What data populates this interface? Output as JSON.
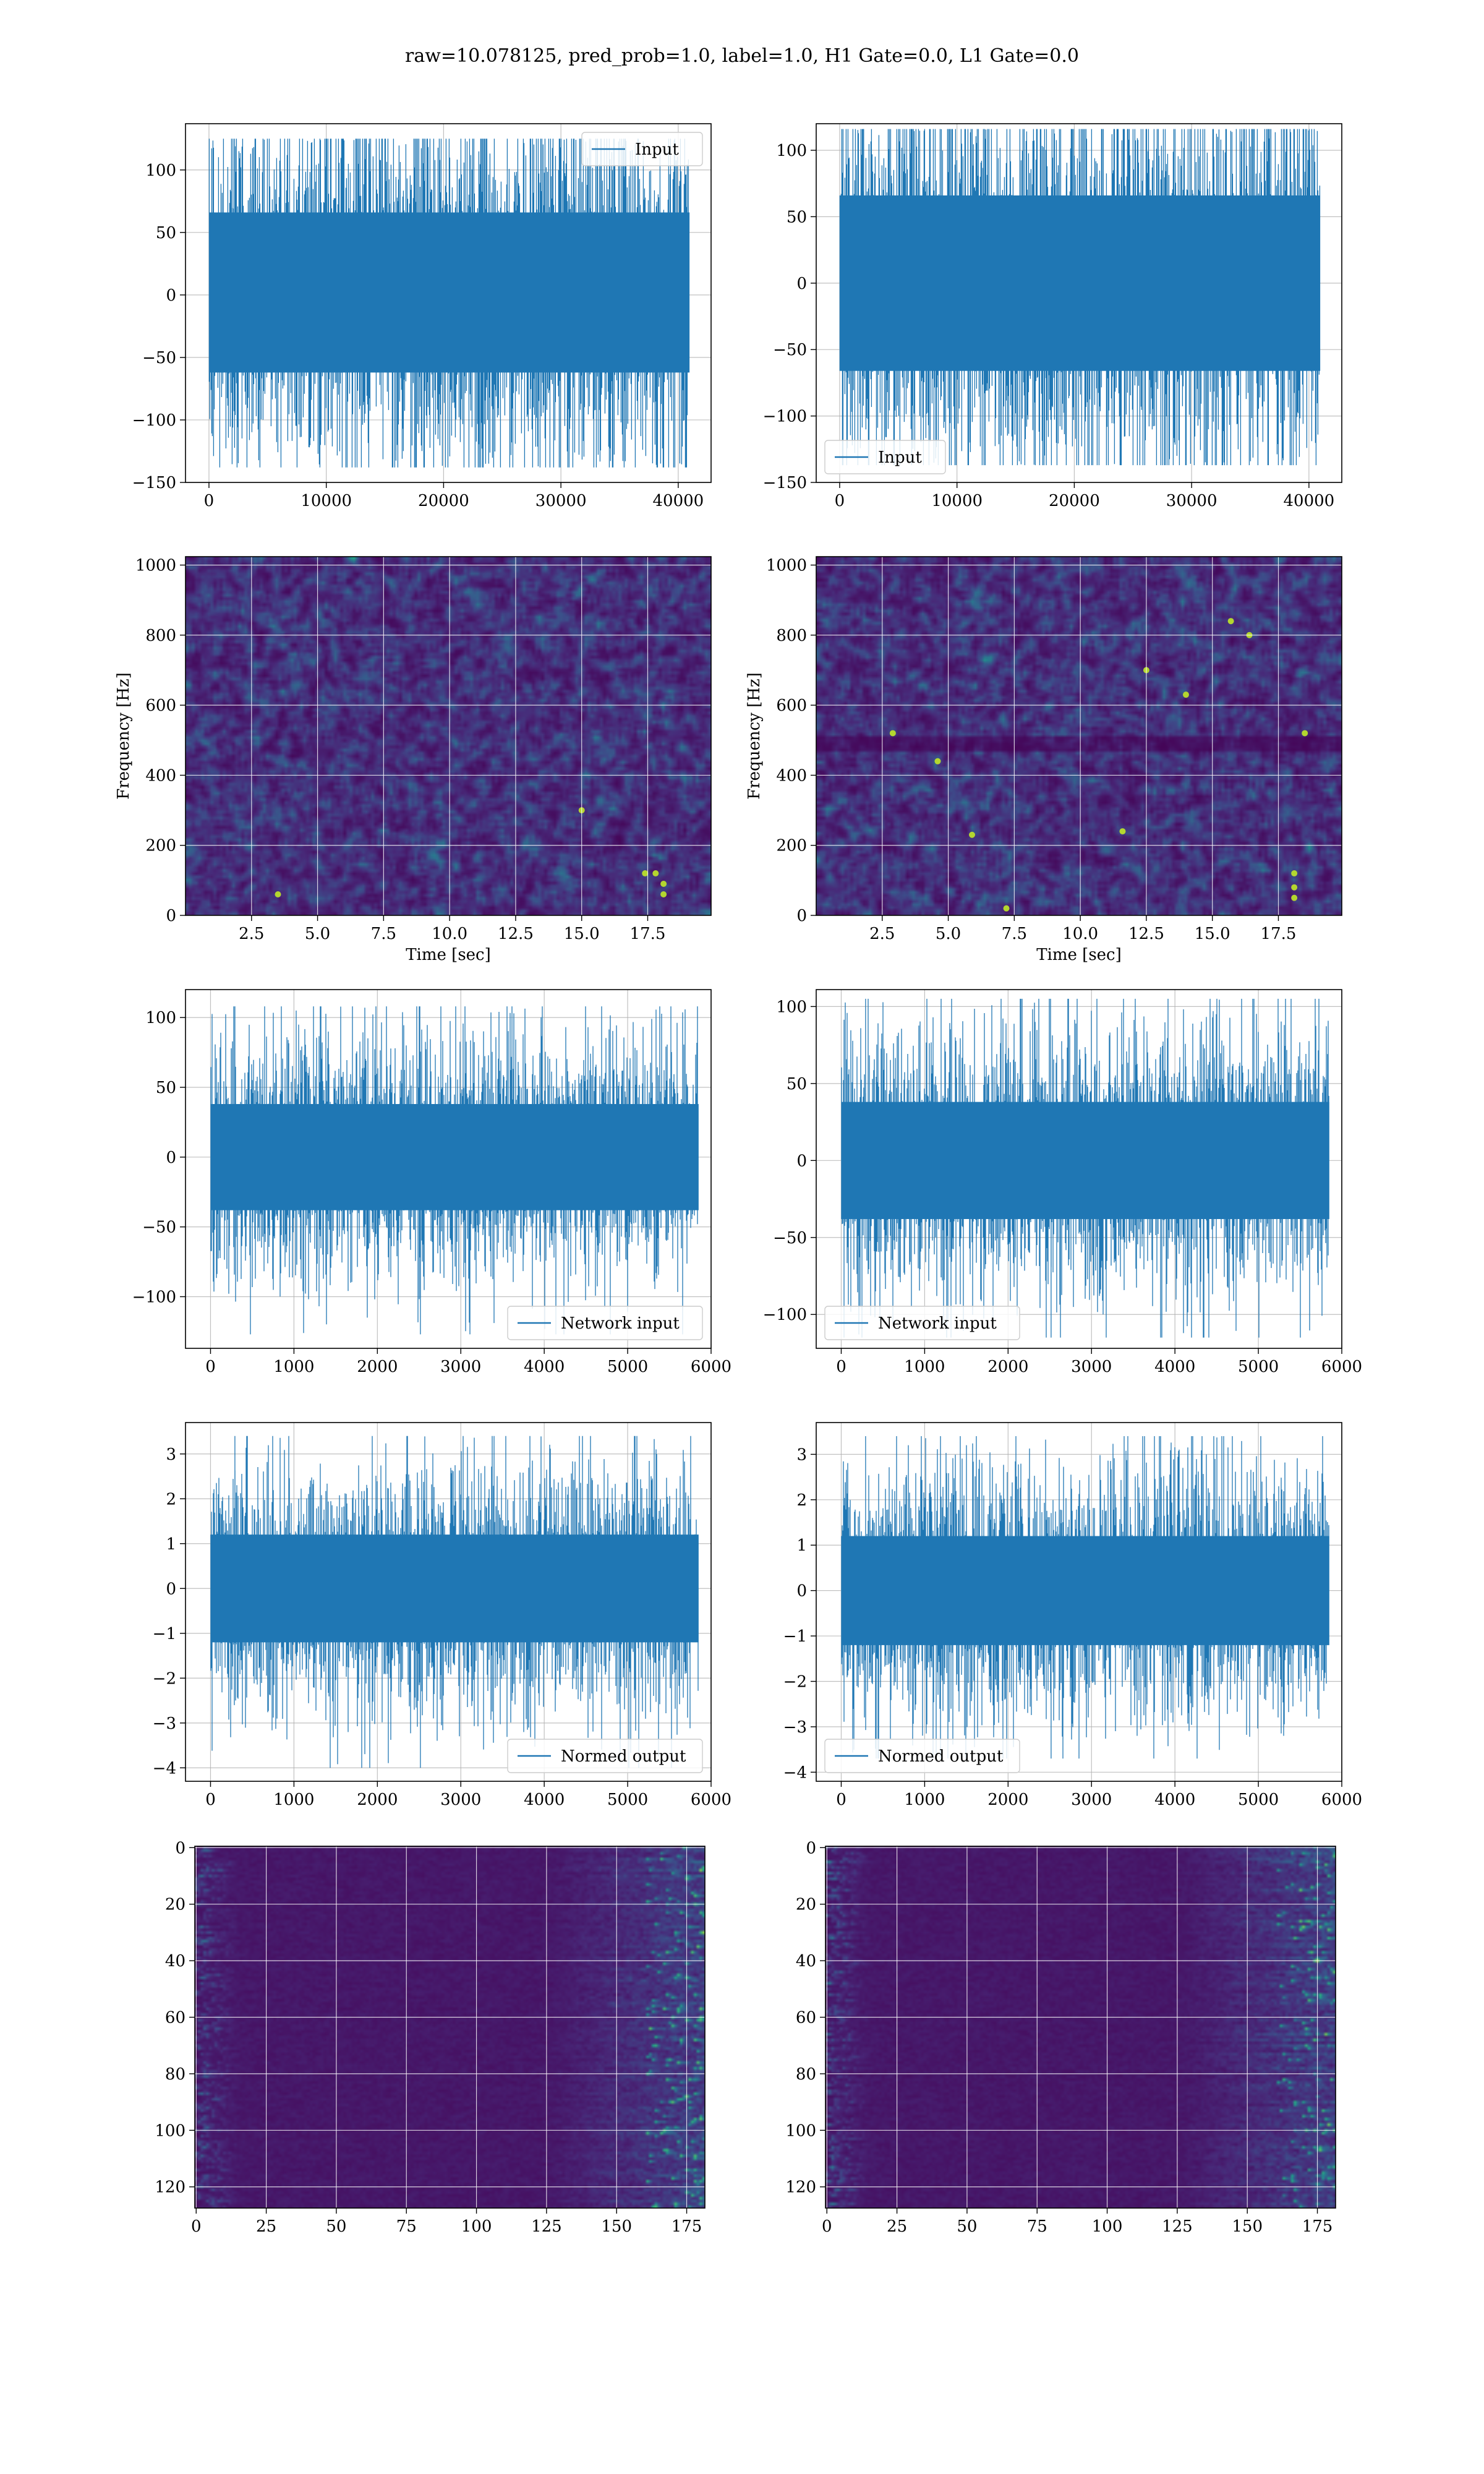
{
  "suptitle": "raw=10.078125, pred_prob=1.0, label=1.0, H1 Gate=0.0, L1 Gate=0.0",
  "colors": {
    "line": "#1f77b4",
    "grid": "#b0b0b0",
    "frame": "#000000",
    "bg": "#ffffff"
  },
  "colormap": "viridis",
  "chart_data": [
    {
      "id": "input-h1",
      "type": "line",
      "row": 0,
      "col": 0,
      "xlim": [
        -2000,
        42800
      ],
      "ylim": [
        -150,
        137
      ],
      "xticks": [
        0,
        10000,
        20000,
        30000,
        40000
      ],
      "xtick_labels": [
        "0",
        "10000",
        "20000",
        "30000",
        "40000"
      ],
      "yticks": [
        -150,
        -100,
        -50,
        0,
        50,
        100
      ],
      "ytick_labels": [
        "−150",
        "−100",
        "−50",
        "0",
        "50",
        "100"
      ],
      "xlabel": "",
      "ylabel": "",
      "grid": true,
      "legend": "upper right",
      "series": [
        {
          "name": "Input",
          "x_range": [
            0,
            40960
          ],
          "band": [
            -62,
            66
          ],
          "min": -138,
          "max": 125
        }
      ]
    },
    {
      "id": "input-l1",
      "type": "line",
      "row": 0,
      "col": 1,
      "xlim": [
        -2000,
        42800
      ],
      "ylim": [
        -150,
        120
      ],
      "xticks": [
        0,
        10000,
        20000,
        30000,
        40000
      ],
      "xtick_labels": [
        "0",
        "10000",
        "20000",
        "30000",
        "40000"
      ],
      "yticks": [
        -150,
        -100,
        -50,
        0,
        50,
        100
      ],
      "ytick_labels": [
        "−150",
        "−100",
        "−50",
        "0",
        "50",
        "100"
      ],
      "xlabel": "",
      "ylabel": "",
      "grid": true,
      "legend": "lower left",
      "series": [
        {
          "name": "Input",
          "x_range": [
            0,
            40960
          ],
          "band": [
            -66,
            66
          ],
          "min": -137,
          "max": 116
        }
      ]
    },
    {
      "id": "spectrogram-h1",
      "type": "heatmap",
      "row": 1,
      "col": 0,
      "xlim": [
        0,
        19.9
      ],
      "ylim": [
        0,
        1024
      ],
      "xticks": [
        2.5,
        5.0,
        7.5,
        10.0,
        12.5,
        15.0,
        17.5
      ],
      "xtick_labels": [
        "2.5",
        "5.0",
        "7.5",
        "10.0",
        "12.5",
        "15.0",
        "17.5"
      ],
      "yticks": [
        0,
        200,
        400,
        600,
        800,
        1000
      ],
      "ytick_labels": [
        "0",
        "200",
        "400",
        "600",
        "800",
        "1000"
      ],
      "xlabel": "Time [sec]",
      "ylabel": "Frequency [Hz]",
      "grid": true,
      "hotspots": [
        [
          17.4,
          120
        ],
        [
          17.8,
          120
        ],
        [
          18.1,
          90
        ],
        [
          18.1,
          60
        ],
        [
          15.0,
          300
        ],
        [
          3.5,
          60
        ]
      ]
    },
    {
      "id": "spectrogram-l1",
      "type": "heatmap",
      "row": 1,
      "col": 1,
      "xlim": [
        0,
        19.9
      ],
      "ylim": [
        0,
        1024
      ],
      "xticks": [
        2.5,
        5.0,
        7.5,
        10.0,
        12.5,
        15.0,
        17.5
      ],
      "xtick_labels": [
        "2.5",
        "5.0",
        "7.5",
        "10.0",
        "12.5",
        "15.0",
        "17.5"
      ],
      "yticks": [
        0,
        200,
        400,
        600,
        800,
        1000
      ],
      "ytick_labels": [
        "0",
        "200",
        "400",
        "600",
        "800",
        "1000"
      ],
      "xlabel": "Time [sec]",
      "ylabel": "Frequency [Hz]",
      "grid": true,
      "dark_band": [
        470,
        510
      ],
      "hotspots": [
        [
          16.4,
          800
        ],
        [
          18.1,
          80
        ],
        [
          18.1,
          120
        ],
        [
          18.1,
          50
        ],
        [
          7.2,
          20
        ],
        [
          5.9,
          230
        ],
        [
          14.0,
          630
        ],
        [
          11.6,
          240
        ],
        [
          4.6,
          440
        ],
        [
          15.7,
          840
        ],
        [
          2.9,
          520
        ],
        [
          12.5,
          700
        ],
        [
          18.5,
          520
        ]
      ]
    },
    {
      "id": "network-input-h1",
      "type": "line",
      "row": 2,
      "col": 0,
      "xlim": [
        -300,
        6000
      ],
      "ylim": [
        -137,
        120
      ],
      "xticks": [
        0,
        1000,
        2000,
        3000,
        4000,
        5000,
        6000
      ],
      "xtick_labels": [
        "0",
        "1000",
        "2000",
        "3000",
        "4000",
        "5000",
        "6000"
      ],
      "yticks": [
        -100,
        -50,
        0,
        50,
        100
      ],
      "ytick_labels": [
        "−100",
        "−50",
        "0",
        "50",
        "100"
      ],
      "xlabel": "",
      "ylabel": "",
      "grid": true,
      "legend": "lower right",
      "series": [
        {
          "name": "Network input",
          "x_range": [
            0,
            5850
          ],
          "band": [
            -38,
            38
          ],
          "min": -127,
          "max": 108
        }
      ]
    },
    {
      "id": "network-input-l1",
      "type": "line",
      "row": 2,
      "col": 1,
      "xlim": [
        -300,
        6000
      ],
      "ylim": [
        -122,
        111
      ],
      "xticks": [
        0,
        1000,
        2000,
        3000,
        4000,
        5000,
        6000
      ],
      "xtick_labels": [
        "0",
        "1000",
        "2000",
        "3000",
        "4000",
        "5000",
        "6000"
      ],
      "yticks": [
        -100,
        -50,
        0,
        50,
        100
      ],
      "ytick_labels": [
        "−100",
        "−50",
        "0",
        "50",
        "100"
      ],
      "xlabel": "",
      "ylabel": "",
      "grid": true,
      "legend": "lower left",
      "series": [
        {
          "name": "Network input",
          "x_range": [
            0,
            5850
          ],
          "band": [
            -38,
            38
          ],
          "min": -115,
          "max": 105
        }
      ]
    },
    {
      "id": "normed-output-h1",
      "type": "line",
      "row": 3,
      "col": 0,
      "xlim": [
        -300,
        6000
      ],
      "ylim": [
        -4.3,
        3.7
      ],
      "xticks": [
        0,
        1000,
        2000,
        3000,
        4000,
        5000,
        6000
      ],
      "xtick_labels": [
        "0",
        "1000",
        "2000",
        "3000",
        "4000",
        "5000",
        "6000"
      ],
      "yticks": [
        -4,
        -3,
        -2,
        -1,
        0,
        1,
        2,
        3
      ],
      "ytick_labels": [
        "−4",
        "−3",
        "−2",
        "−1",
        "0",
        "1",
        "2",
        "3"
      ],
      "xlabel": "",
      "ylabel": "",
      "grid": true,
      "legend": "lower right",
      "series": [
        {
          "name": "Normed output",
          "x_range": [
            0,
            5850
          ],
          "band": [
            -1.2,
            1.2
          ],
          "min": -4.0,
          "max": 3.4
        }
      ]
    },
    {
      "id": "normed-output-l1",
      "type": "line",
      "row": 3,
      "col": 1,
      "xlim": [
        -300,
        6000
      ],
      "ylim": [
        -4.2,
        3.7
      ],
      "xticks": [
        0,
        1000,
        2000,
        3000,
        4000,
        5000,
        6000
      ],
      "xtick_labels": [
        "0",
        "1000",
        "2000",
        "3000",
        "4000",
        "5000",
        "6000"
      ],
      "yticks": [
        -4,
        -3,
        -2,
        -1,
        0,
        1,
        2,
        3
      ],
      "ytick_labels": [
        "−4",
        "−3",
        "−2",
        "−1",
        "0",
        "1",
        "2",
        "3"
      ],
      "xlabel": "",
      "ylabel": "",
      "grid": true,
      "legend": "lower left",
      "series": [
        {
          "name": "Normed output",
          "x_range": [
            0,
            5850
          ],
          "band": [
            -1.2,
            1.2
          ],
          "min": -3.7,
          "max": 3.4
        }
      ]
    },
    {
      "id": "feature-map-h1",
      "type": "heatmap",
      "row": 4,
      "col": 0,
      "xlim": [
        -0.5,
        181.5
      ],
      "ylim": [
        127.5,
        -0.5
      ],
      "y_inverted": true,
      "n_rows": 128,
      "n_cols": 182,
      "xticks": [
        0,
        25,
        50,
        75,
        100,
        125,
        150,
        175
      ],
      "xtick_labels": [
        "0",
        "25",
        "50",
        "75",
        "100",
        "125",
        "150",
        "175"
      ],
      "yticks": [
        0,
        20,
        40,
        60,
        80,
        100,
        120
      ],
      "ytick_labels": [
        "0",
        "20",
        "40",
        "60",
        "80",
        "100",
        "120"
      ],
      "xlabel": "",
      "ylabel": "",
      "grid": true
    },
    {
      "id": "feature-map-l1",
      "type": "heatmap",
      "row": 4,
      "col": 1,
      "xlim": [
        -0.5,
        181.5
      ],
      "ylim": [
        127.5,
        -0.5
      ],
      "y_inverted": true,
      "n_rows": 128,
      "n_cols": 182,
      "xticks": [
        0,
        25,
        50,
        75,
        100,
        125,
        150,
        175
      ],
      "xtick_labels": [
        "0",
        "25",
        "50",
        "75",
        "100",
        "125",
        "150",
        "175"
      ],
      "yticks": [
        0,
        20,
        40,
        60,
        80,
        100,
        120
      ],
      "ytick_labels": [
        "0",
        "20",
        "40",
        "60",
        "80",
        "100",
        "120"
      ],
      "xlabel": "",
      "ylabel": "",
      "grid": true
    }
  ]
}
